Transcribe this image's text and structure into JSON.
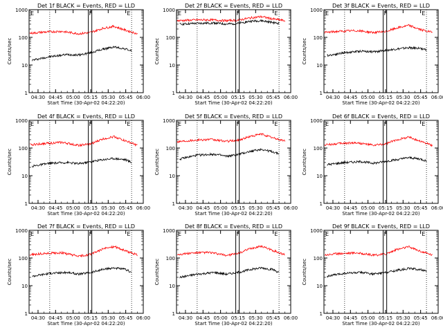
{
  "chart_data": [
    {
      "type": "line",
      "title": "Det 1f BLACK = Events, RED = LLD",
      "xlabel": "Start Time (30-Apr-02 04:22:20)",
      "ylabel": "Counts/sec",
      "yscale": "log",
      "ylim": [
        1,
        1000
      ],
      "ytick_labels": [
        "1",
        "10",
        "100",
        "1000"
      ],
      "xlim": [
        "04:22:20",
        "06:00"
      ],
      "xtick_labels": [
        "04:30",
        "04:45",
        "05:00",
        "05:15",
        "05:30",
        "05:45",
        "06:00"
      ],
      "flags": [
        "E",
        "F",
        "E"
      ],
      "series": [
        {
          "name": "BLACK = Events",
          "color": "#000000",
          "x": [
            "04:25",
            "04:40",
            "04:55",
            "05:05",
            "05:15",
            "05:25",
            "05:35",
            "05:45",
            "05:50"
          ],
          "y": [
            15,
            20,
            24,
            23,
            28,
            37,
            45,
            38,
            32
          ]
        },
        {
          "name": "RED = LLD",
          "color": "#ff0000",
          "x": [
            "04:23",
            "04:35",
            "04:50",
            "05:05",
            "05:15",
            "05:25",
            "05:35",
            "05:45",
            "05:55"
          ],
          "y": [
            140,
            155,
            165,
            135,
            150,
            210,
            250,
            180,
            135
          ]
        }
      ]
    },
    {
      "type": "line",
      "title": "Det 2f BLACK = Events, RED = LLD",
      "xlabel": "Start Time (30-Apr-02 04:22:20)",
      "ylabel": "Counts/sec",
      "yscale": "log",
      "ylim": [
        1,
        1000
      ],
      "ytick_labels": [
        "1",
        "10",
        "100",
        "1000"
      ],
      "xlim": [
        "04:22:20",
        "06:00"
      ],
      "xtick_labels": [
        "04:30",
        "04:45",
        "05:00",
        "05:15",
        "05:30",
        "05:45",
        "06:00"
      ],
      "flags": [
        "E",
        "F",
        "E"
      ],
      "series": [
        {
          "name": "BLACK = Events",
          "color": "#000000",
          "x": [
            "04:25",
            "04:40",
            "04:55",
            "05:05",
            "05:15",
            "05:25",
            "05:35",
            "05:45",
            "05:50"
          ],
          "y": [
            300,
            320,
            330,
            300,
            320,
            380,
            400,
            340,
            320
          ]
        },
        {
          "name": "RED = LLD",
          "color": "#ff0000",
          "x": [
            "04:23",
            "04:35",
            "04:50",
            "05:05",
            "05:15",
            "05:25",
            "05:35",
            "05:45",
            "05:55"
          ],
          "y": [
            400,
            420,
            430,
            400,
            420,
            500,
            560,
            460,
            400
          ]
        }
      ]
    },
    {
      "type": "line",
      "title": "Det 3f BLACK = Events, RED = LLD",
      "xlabel": "Start Time (30-Apr-02 04:22:20)",
      "ylabel": "Counts/sec",
      "yscale": "log",
      "ylim": [
        1,
        1000
      ],
      "ytick_labels": [
        "1",
        "10",
        "100",
        "1000"
      ],
      "xlim": [
        "04:22:20",
        "06:00"
      ],
      "xtick_labels": [
        "04:30",
        "04:45",
        "05:00",
        "05:15",
        "05:30",
        "05:45",
        "06:00"
      ],
      "flags": [
        "E",
        "F",
        "E"
      ],
      "series": [
        {
          "name": "BLACK = Events",
          "color": "#000000",
          "x": [
            "04:25",
            "04:40",
            "04:55",
            "05:05",
            "05:15",
            "05:25",
            "05:35",
            "05:45",
            "05:50"
          ],
          "y": [
            22,
            28,
            32,
            30,
            34,
            38,
            42,
            40,
            36
          ]
        },
        {
          "name": "RED = LLD",
          "color": "#ff0000",
          "x": [
            "04:23",
            "04:35",
            "04:50",
            "05:05",
            "05:15",
            "05:25",
            "05:35",
            "05:45",
            "05:55"
          ],
          "y": [
            150,
            165,
            175,
            150,
            160,
            220,
            270,
            190,
            150
          ]
        }
      ]
    },
    {
      "type": "line",
      "title": "Det 4f BLACK = Events, RED = LLD",
      "xlabel": "Start Time (30-Apr-02 04:22:20)",
      "ylabel": "Counts/sec",
      "yscale": "log",
      "ylim": [
        1,
        1000
      ],
      "ytick_labels": [
        "1",
        "10",
        "100",
        "1000"
      ],
      "xlim": [
        "04:22:20",
        "06:00"
      ],
      "xtick_labels": [
        "04:30",
        "04:45",
        "05:00",
        "05:15",
        "05:30",
        "05:45",
        "06:00"
      ],
      "flags": [
        "E",
        "F",
        "E"
      ],
      "series": [
        {
          "name": "BLACK = Events",
          "color": "#000000",
          "x": [
            "04:25",
            "04:40",
            "04:55",
            "05:05",
            "05:15",
            "05:25",
            "05:35",
            "05:45",
            "05:50"
          ],
          "y": [
            22,
            28,
            30,
            27,
            32,
            38,
            42,
            38,
            30
          ]
        },
        {
          "name": "RED = LLD",
          "color": "#ff0000",
          "x": [
            "04:23",
            "04:35",
            "04:50",
            "05:05",
            "05:15",
            "05:25",
            "05:35",
            "05:45",
            "05:55"
          ],
          "y": [
            130,
            145,
            160,
            125,
            140,
            210,
            260,
            180,
            125
          ]
        }
      ]
    },
    {
      "type": "line",
      "title": "Det 5f BLACK = Events, RED = LLD",
      "xlabel": "Start Time (30-Apr-02 04:22:20)",
      "ylabel": "Counts/sec",
      "yscale": "log",
      "ylim": [
        1,
        1000
      ],
      "ytick_labels": [
        "1",
        "10",
        "100",
        "1000"
      ],
      "xlim": [
        "04:22:20",
        "06:00"
      ],
      "xtick_labels": [
        "04:30",
        "04:45",
        "05:00",
        "05:15",
        "05:30",
        "05:45",
        "06:00"
      ],
      "flags": [
        "E",
        "F",
        "E"
      ],
      "series": [
        {
          "name": "BLACK = Events",
          "color": "#000000",
          "x": [
            "04:25",
            "04:40",
            "04:55",
            "05:05",
            "05:15",
            "05:25",
            "05:35",
            "05:45",
            "05:50"
          ],
          "y": [
            40,
            55,
            60,
            50,
            58,
            75,
            90,
            72,
            62
          ]
        },
        {
          "name": "RED = LLD",
          "color": "#ff0000",
          "x": [
            "04:23",
            "04:35",
            "04:50",
            "05:05",
            "05:15",
            "05:25",
            "05:35",
            "05:45",
            "05:55"
          ],
          "y": [
            170,
            190,
            205,
            175,
            190,
            260,
            320,
            230,
            180
          ]
        }
      ]
    },
    {
      "type": "line",
      "title": "Det 6f BLACK = Events, RED = LLD",
      "xlabel": "Start Time (30-Apr-02 04:22:20)",
      "ylabel": "Counts/sec",
      "yscale": "log",
      "ylim": [
        1,
        1000
      ],
      "ytick_labels": [
        "1",
        "10",
        "100",
        "1000"
      ],
      "xlim": [
        "04:22:20",
        "06:00"
      ],
      "xtick_labels": [
        "04:30",
        "04:45",
        "05:00",
        "05:15",
        "05:30",
        "05:45",
        "06:00"
      ],
      "flags": [
        "E",
        "F",
        "E"
      ],
      "series": [
        {
          "name": "BLACK = Events",
          "color": "#000000",
          "x": [
            "04:25",
            "04:40",
            "04:55",
            "05:05",
            "05:15",
            "05:25",
            "05:35",
            "05:45",
            "05:50"
          ],
          "y": [
            25,
            30,
            32,
            28,
            33,
            38,
            45,
            40,
            34
          ]
        },
        {
          "name": "RED = LLD",
          "color": "#ff0000",
          "x": [
            "04:23",
            "04:35",
            "04:50",
            "05:05",
            "05:15",
            "05:25",
            "05:35",
            "05:45",
            "05:55"
          ],
          "y": [
            130,
            145,
            155,
            125,
            140,
            200,
            250,
            175,
            125
          ]
        }
      ]
    },
    {
      "type": "line",
      "title": "Det 7f BLACK = Events, RED = LLD",
      "xlabel": "Start Time (30-Apr-02 04:22:20)",
      "ylabel": "Counts/sec",
      "yscale": "log",
      "ylim": [
        1,
        1000
      ],
      "ytick_labels": [
        "1",
        "10",
        "100",
        "1000"
      ],
      "xlim": [
        "04:22:20",
        "06:00"
      ],
      "xtick_labels": [
        "04:30",
        "04:45",
        "05:00",
        "05:15",
        "05:30",
        "05:45",
        "06:00"
      ],
      "flags": [
        "E",
        "F",
        "E"
      ],
      "series": [
        {
          "name": "BLACK = Events",
          "color": "#000000",
          "x": [
            "04:25",
            "04:40",
            "04:55",
            "05:05",
            "05:15",
            "05:25",
            "05:35",
            "05:45",
            "05:50"
          ],
          "y": [
            22,
            28,
            30,
            26,
            30,
            38,
            44,
            38,
            30
          ]
        },
        {
          "name": "RED = LLD",
          "color": "#ff0000",
          "x": [
            "04:23",
            "04:35",
            "04:50",
            "05:05",
            "05:15",
            "05:25",
            "05:35",
            "05:45",
            "05:55"
          ],
          "y": [
            130,
            145,
            155,
            115,
            135,
            210,
            260,
            180,
            130
          ]
        }
      ]
    },
    {
      "type": "line",
      "title": "Det 8f BLACK = Events, RED = LLD",
      "xlabel": "Start Time (30-Apr-02 04:22:20)",
      "ylabel": "Counts/sec",
      "yscale": "log",
      "ylim": [
        1,
        1000
      ],
      "ytick_labels": [
        "1",
        "10",
        "100",
        "1000"
      ],
      "xlim": [
        "04:22:20",
        "06:00"
      ],
      "xtick_labels": [
        "04:30",
        "04:45",
        "05:00",
        "05:15",
        "05:30",
        "05:45",
        "06:00"
      ],
      "flags": [
        "E",
        "F",
        "E"
      ],
      "series": [
        {
          "name": "BLACK = Events",
          "color": "#000000",
          "x": [
            "04:25",
            "04:40",
            "04:55",
            "05:05",
            "05:15",
            "05:25",
            "05:35",
            "05:45",
            "05:50"
          ],
          "y": [
            20,
            26,
            30,
            26,
            30,
            38,
            44,
            38,
            30
          ]
        },
        {
          "name": "RED = LLD",
          "color": "#ff0000",
          "x": [
            "04:23",
            "04:35",
            "04:50",
            "05:05",
            "05:15",
            "05:25",
            "05:35",
            "05:45",
            "05:55"
          ],
          "y": [
            135,
            150,
            160,
            125,
            145,
            215,
            270,
            185,
            130
          ]
        }
      ]
    },
    {
      "type": "line",
      "title": "Det 9f BLACK = Events, RED = LLD",
      "xlabel": "Start Time (30-Apr-02 04:22:20)",
      "ylabel": "Counts/sec",
      "yscale": "log",
      "ylim": [
        1,
        1000
      ],
      "ytick_labels": [
        "1",
        "10",
        "100",
        "1000"
      ],
      "xlim": [
        "04:22:20",
        "06:00"
      ],
      "xtick_labels": [
        "04:30",
        "04:45",
        "05:00",
        "05:15",
        "05:30",
        "05:45",
        "06:00"
      ],
      "flags": [
        "E",
        "F",
        "E"
      ],
      "series": [
        {
          "name": "BLACK = Events",
          "color": "#000000",
          "x": [
            "04:25",
            "04:40",
            "04:55",
            "05:05",
            "05:15",
            "05:25",
            "05:35",
            "05:45",
            "05:50"
          ],
          "y": [
            22,
            28,
            30,
            26,
            30,
            36,
            42,
            38,
            32
          ]
        },
        {
          "name": "RED = LLD",
          "color": "#ff0000",
          "x": [
            "04:23",
            "04:35",
            "04:50",
            "05:05",
            "05:15",
            "05:25",
            "05:35",
            "05:45",
            "05:55"
          ],
          "y": [
            130,
            145,
            155,
            125,
            140,
            205,
            255,
            175,
            130
          ]
        }
      ]
    }
  ]
}
